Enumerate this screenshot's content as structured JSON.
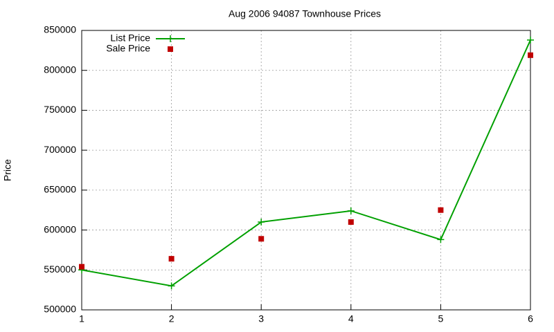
{
  "chart_data": {
    "type": "line",
    "title": "Aug 2006 94087 Townhouse Prices",
    "y_label": "Price",
    "x": [
      1,
      2,
      3,
      4,
      5,
      6
    ],
    "series": [
      {
        "name": "List Price",
        "color": "#00a000",
        "style": "linespoints",
        "values": [
          550000,
          530000,
          610000,
          624000,
          588000,
          838000
        ]
      },
      {
        "name": "Sale Price",
        "color": "#c00000",
        "style": "points",
        "values": [
          554000,
          564000,
          589000,
          610000,
          625000,
          819000
        ]
      }
    ],
    "xlim": [
      1,
      6
    ],
    "xticks": [
      1,
      2,
      3,
      4,
      5,
      6
    ],
    "ylim": [
      500000,
      850000
    ],
    "yticks": [
      500000,
      550000,
      600000,
      650000,
      700000,
      750000,
      800000,
      850000
    ],
    "grid": true,
    "legend": "top-left"
  }
}
